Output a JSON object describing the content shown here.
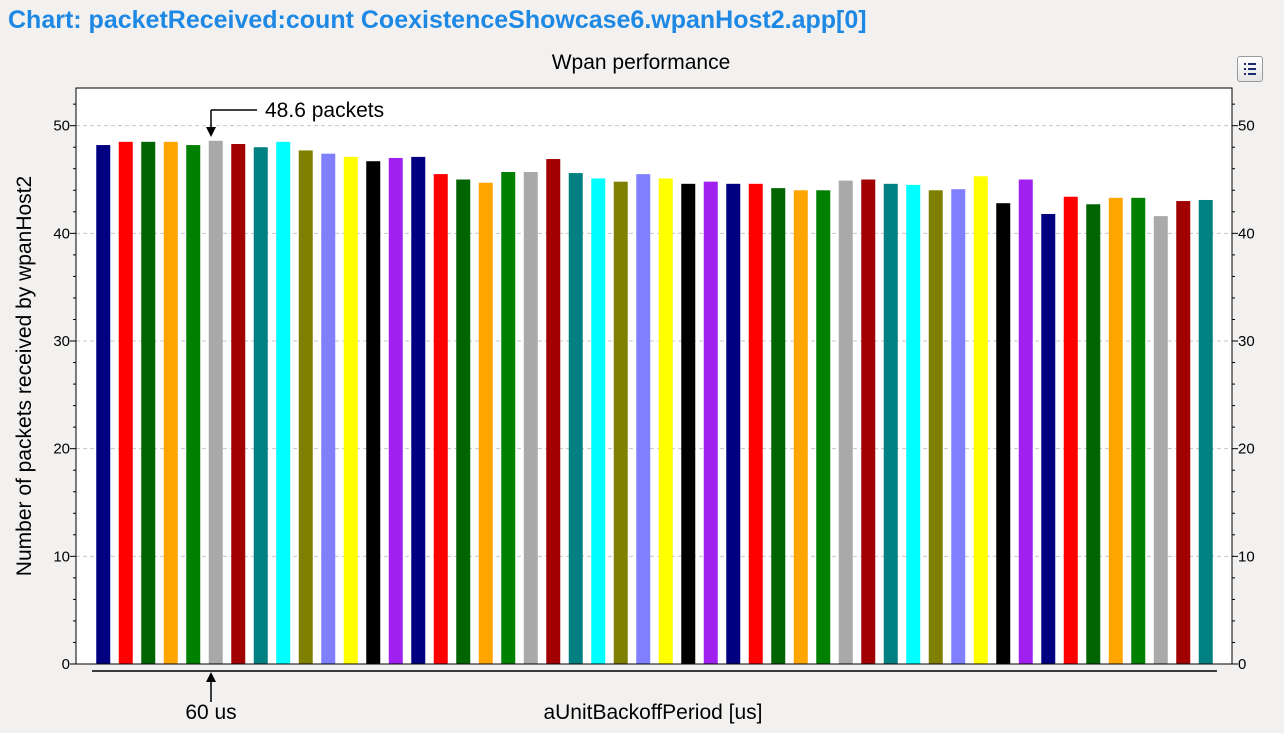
{
  "window": {
    "title": "Chart: packetReceived:count CoexistenceShowcase6.wpanHost2.app[0]"
  },
  "toolbar": {
    "legend_icon": "legend-list-icon"
  },
  "annotations": {
    "value": "48.6 packets",
    "category": "60 us"
  },
  "chart_data": {
    "type": "bar",
    "title": "Wpan performance",
    "xlabel": "aUnitBackoffPeriod [us]",
    "ylabel": "Number of packets received by wpanHost2",
    "ylim": [
      0,
      53.5
    ],
    "yticks": [
      0,
      10,
      20,
      30,
      40,
      50
    ],
    "grid": true,
    "legend": "none",
    "values": [
      48.2,
      48.5,
      48.5,
      48.5,
      48.2,
      48.6,
      48.3,
      48.0,
      48.5,
      47.7,
      47.4,
      47.1,
      46.7,
      47.0,
      47.1,
      45.5,
      45.0,
      44.7,
      45.7,
      45.7,
      46.9,
      45.6,
      45.1,
      44.8,
      45.5,
      45.1,
      44.6,
      44.8,
      44.6,
      44.6,
      44.2,
      44.0,
      44.0,
      44.9,
      45.0,
      44.6,
      44.5,
      44.0,
      44.1,
      45.3,
      42.8,
      45.0,
      41.8,
      43.4,
      42.7,
      43.3,
      43.3,
      41.6,
      43.0,
      43.1
    ],
    "colors": [
      "#000080",
      "#ff0000",
      "#006400",
      "#ffa500",
      "#008000",
      "#a9a9a9",
      "#a00000",
      "#008080",
      "#00ffff",
      "#808000",
      "#8080ff",
      "#ffff00",
      "#000000",
      "#a020f0"
    ]
  }
}
